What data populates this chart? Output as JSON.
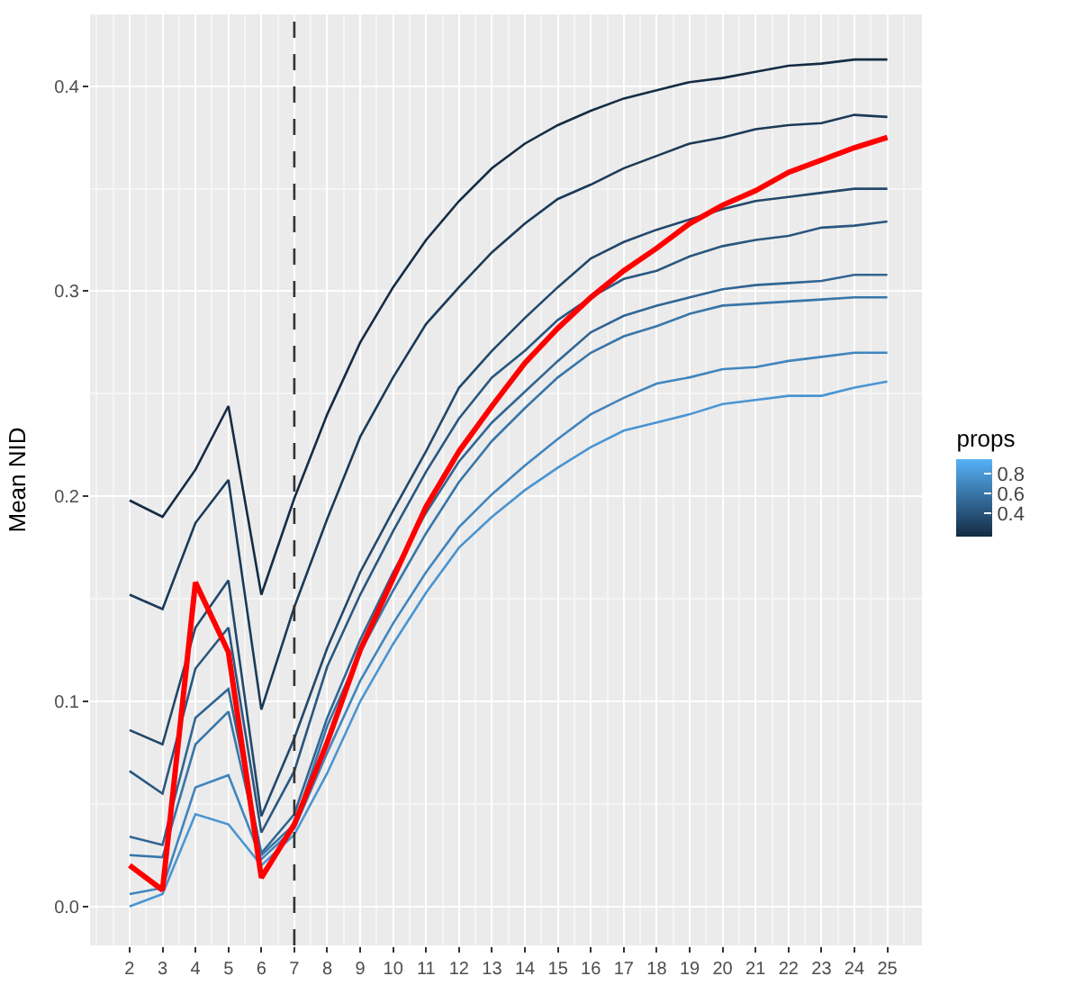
{
  "chart_data": {
    "type": "line",
    "ylabel": "Mean NID",
    "clabel": "props",
    "x": [
      2,
      3,
      4,
      5,
      6,
      7,
      8,
      9,
      10,
      11,
      12,
      13,
      14,
      15,
      16,
      17,
      18,
      19,
      20,
      21,
      22,
      23,
      24,
      25
    ],
    "xlim": [
      0.8,
      26.05
    ],
    "xticks": [
      2,
      3,
      4,
      5,
      6,
      7,
      8,
      9,
      10,
      11,
      12,
      13,
      14,
      15,
      16,
      17,
      18,
      19,
      20,
      21,
      22,
      23,
      24,
      25
    ],
    "ylim": [
      -0.019,
      0.435
    ],
    "yticks": [
      {
        "value": 0,
        "label": "0.0"
      },
      0.1,
      0.2,
      0.3,
      0.4
    ],
    "clim": [
      0.16,
      0.95
    ],
    "cticks": [
      0.4,
      0.6,
      0.8
    ],
    "grid": true,
    "ref_lines": [
      {
        "axis": "x",
        "value": 7,
        "line_style": "dashed",
        "color": "#333333"
      }
    ],
    "series": [
      {
        "color": "#142c44",
        "values": [
          0.198,
          0.19,
          0.213,
          0.244,
          0.152,
          0.199,
          0.24,
          0.275,
          0.302,
          0.325,
          0.344,
          0.36,
          0.372,
          0.381,
          0.388,
          0.394,
          0.398,
          0.402,
          0.404,
          0.407,
          0.41,
          0.411,
          0.413,
          0.413
        ]
      },
      {
        "color": "#1b3a57",
        "values": [
          0.152,
          0.145,
          0.187,
          0.208,
          0.096,
          0.146,
          0.189,
          0.229,
          0.258,
          0.284,
          0.302,
          0.319,
          0.333,
          0.345,
          0.352,
          0.36,
          0.366,
          0.372,
          0.375,
          0.379,
          0.381,
          0.382,
          0.386,
          0.385
        ]
      },
      {
        "color": "#22486b",
        "values": [
          0.086,
          0.079,
          0.136,
          0.159,
          0.044,
          0.082,
          0.126,
          0.163,
          0.193,
          0.222,
          0.253,
          0.271,
          0.287,
          0.302,
          0.316,
          0.324,
          0.33,
          0.335,
          0.34,
          0.344,
          0.346,
          0.348,
          0.35,
          0.35
        ]
      },
      {
        "color": "#2a577f",
        "values": [
          0.066,
          0.055,
          0.116,
          0.136,
          0.036,
          0.066,
          0.117,
          0.152,
          0.183,
          0.212,
          0.238,
          0.258,
          0.271,
          0.286,
          0.297,
          0.306,
          0.31,
          0.317,
          0.322,
          0.325,
          0.327,
          0.331,
          0.332,
          0.334
        ]
      },
      {
        "color": "#316693",
        "values": [
          0.034,
          0.03,
          0.092,
          0.106,
          0.026,
          0.045,
          0.092,
          0.13,
          0.163,
          0.192,
          0.217,
          0.236,
          0.251,
          0.266,
          0.28,
          0.288,
          0.293,
          0.297,
          0.301,
          0.303,
          0.304,
          0.305,
          0.308,
          0.308
        ]
      },
      {
        "color": "#3976a8",
        "values": [
          0.025,
          0.024,
          0.079,
          0.095,
          0.025,
          0.04,
          0.088,
          0.124,
          0.154,
          0.182,
          0.207,
          0.227,
          0.243,
          0.258,
          0.27,
          0.278,
          0.283,
          0.289,
          0.293,
          0.294,
          0.295,
          0.296,
          0.297,
          0.297
        ]
      },
      {
        "color": "#4185bd",
        "values": [
          0.006,
          0.009,
          0.058,
          0.064,
          0.023,
          0.038,
          0.075,
          0.11,
          0.138,
          0.163,
          0.185,
          0.201,
          0.215,
          0.228,
          0.24,
          0.248,
          0.255,
          0.258,
          0.262,
          0.263,
          0.266,
          0.268,
          0.27,
          0.27
        ]
      },
      {
        "color": "#4a95d2",
        "values": [
          0.0,
          0.006,
          0.045,
          0.04,
          0.02,
          0.035,
          0.065,
          0.1,
          0.128,
          0.153,
          0.175,
          0.19,
          0.203,
          0.214,
          0.224,
          0.232,
          0.236,
          0.24,
          0.245,
          0.247,
          0.249,
          0.249,
          0.253,
          0.256
        ]
      },
      {
        "color": "#ff0000",
        "values": [
          0.02,
          0.008,
          0.158,
          0.124,
          0.014,
          0.04,
          0.08,
          0.125,
          0.16,
          0.195,
          0.222,
          0.244,
          0.265,
          0.282,
          0.297,
          0.31,
          0.321,
          0.333,
          0.342,
          0.349,
          0.358,
          0.364,
          0.37,
          0.375
        ]
      }
    ]
  }
}
